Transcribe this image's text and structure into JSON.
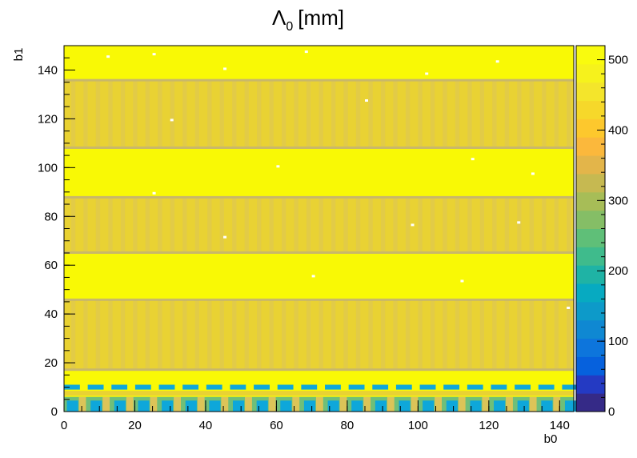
{
  "chart_data": {
    "type": "heatmap",
    "title": "Λ",
    "title_subscript": "0",
    "title_unit": "[mm]",
    "xlabel": "b0",
    "ylabel": "b1",
    "xlim": [
      0,
      144
    ],
    "ylim": [
      0,
      150
    ],
    "zlim": [
      0,
      520
    ],
    "x_ticks": [
      "0",
      "20",
      "40",
      "60",
      "80",
      "100",
      "120",
      "140"
    ],
    "y_ticks": [
      "0",
      "20",
      "40",
      "60",
      "80",
      "100",
      "120",
      "140"
    ],
    "z_ticks": [
      "0",
      "100",
      "200",
      "300",
      "400",
      "500"
    ],
    "palette": "kBird (ROOT)",
    "colors": {
      "yellow": "#f9f905",
      "band": "#e9d233",
      "band_dark": "#dcc458",
      "gap_line": "#c9b86a",
      "cyan": "#0ea7da",
      "green": "#6fbf79"
    },
    "bands": [
      {
        "y_from": 17,
        "y_to": 46,
        "value": 460
      },
      {
        "y_from": 65,
        "y_to": 88,
        "value": 460
      },
      {
        "y_from": 108,
        "y_to": 136,
        "value": 460
      }
    ],
    "low_region": [
      {
        "y_from": 0,
        "y_to": 6,
        "value": 230
      },
      {
        "y_from": 9,
        "y_to": 11,
        "value": 220
      }
    ],
    "background_value": 515
  }
}
